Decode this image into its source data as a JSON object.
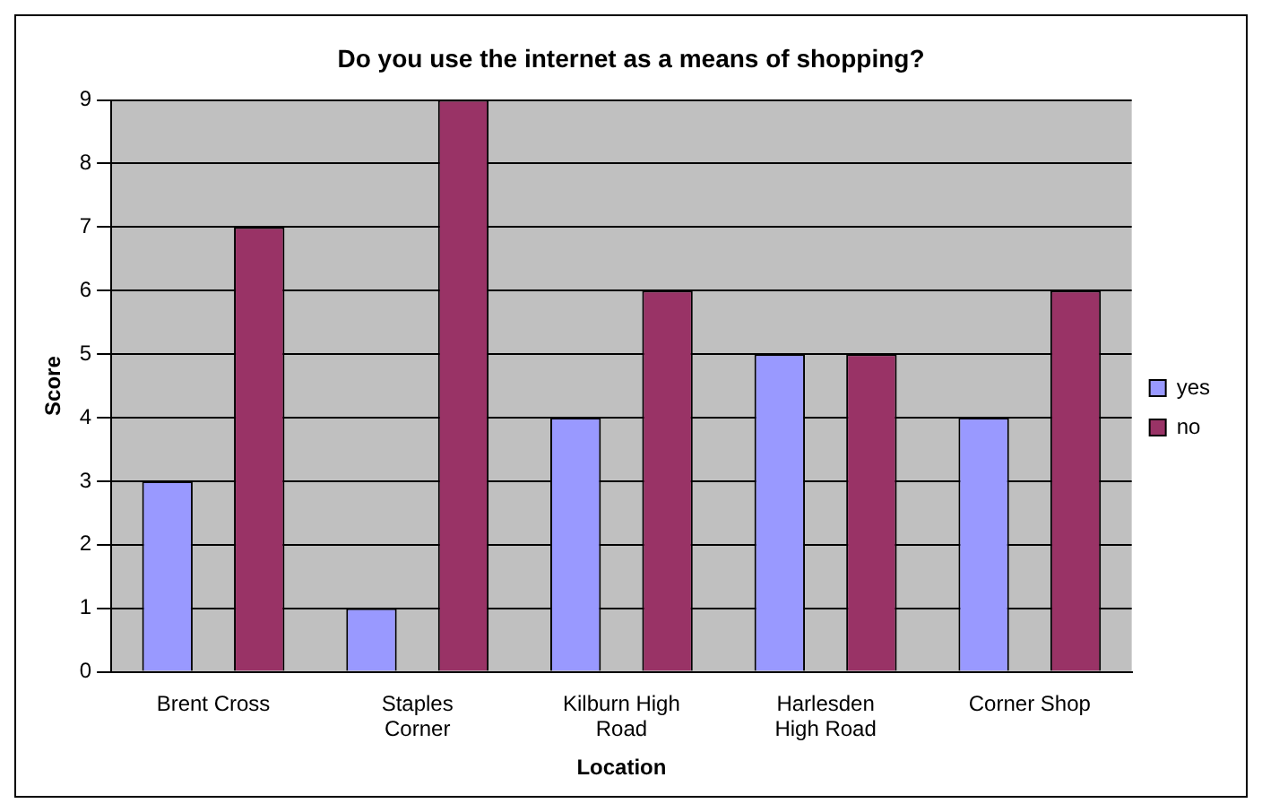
{
  "chart_data": {
    "type": "bar",
    "title": "Do you use the internet as a means of shopping?",
    "xlabel": "Location",
    "ylabel": "Score",
    "categories": [
      "Brent Cross",
      "Staples Corner",
      "Kilburn High Road",
      "Harlesden High Road",
      "Corner Shop"
    ],
    "series": [
      {
        "name": "yes",
        "color": "#9999ff",
        "values": [
          3,
          1,
          4,
          5,
          4
        ]
      },
      {
        "name": "no",
        "color": "#993366",
        "values": [
          7,
          9,
          6,
          5,
          6
        ]
      }
    ],
    "ylim": [
      0,
      9
    ],
    "yticks": [
      0,
      1,
      2,
      3,
      4,
      5,
      6,
      7,
      8,
      9
    ],
    "grid": "y",
    "legend": "right"
  }
}
